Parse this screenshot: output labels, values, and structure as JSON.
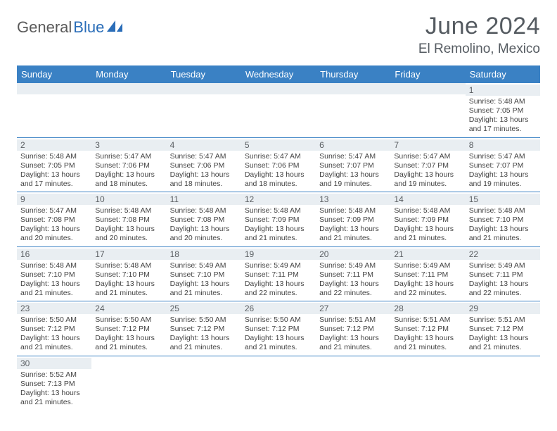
{
  "brand": {
    "text1": "General",
    "text2": "Blue"
  },
  "title": "June 2024",
  "location": "El Remolino, Mexico",
  "colors": {
    "header_bg": "#3a81c4",
    "header_text": "#ffffff",
    "daynum_bg": "#e9eef2",
    "cell_border": "#3a81c4",
    "body_text": "#444444",
    "title_text": "#555b61",
    "brand_gray": "#5a5a5a",
    "brand_blue": "#2a6db8"
  },
  "day_headers": [
    "Sunday",
    "Monday",
    "Tuesday",
    "Wednesday",
    "Thursday",
    "Friday",
    "Saturday"
  ],
  "weeks": [
    [
      null,
      null,
      null,
      null,
      null,
      null,
      {
        "n": "1",
        "sr": "5:48 AM",
        "ss": "7:05 PM",
        "dl": "13 hours",
        "dm": "17 minutes."
      }
    ],
    [
      {
        "n": "2",
        "sr": "5:48 AM",
        "ss": "7:05 PM",
        "dl": "13 hours",
        "dm": "17 minutes."
      },
      {
        "n": "3",
        "sr": "5:47 AM",
        "ss": "7:06 PM",
        "dl": "13 hours",
        "dm": "18 minutes."
      },
      {
        "n": "4",
        "sr": "5:47 AM",
        "ss": "7:06 PM",
        "dl": "13 hours",
        "dm": "18 minutes."
      },
      {
        "n": "5",
        "sr": "5:47 AM",
        "ss": "7:06 PM",
        "dl": "13 hours",
        "dm": "18 minutes."
      },
      {
        "n": "6",
        "sr": "5:47 AM",
        "ss": "7:07 PM",
        "dl": "13 hours",
        "dm": "19 minutes."
      },
      {
        "n": "7",
        "sr": "5:47 AM",
        "ss": "7:07 PM",
        "dl": "13 hours",
        "dm": "19 minutes."
      },
      {
        "n": "8",
        "sr": "5:47 AM",
        "ss": "7:07 PM",
        "dl": "13 hours",
        "dm": "19 minutes."
      }
    ],
    [
      {
        "n": "9",
        "sr": "5:47 AM",
        "ss": "7:08 PM",
        "dl": "13 hours",
        "dm": "20 minutes."
      },
      {
        "n": "10",
        "sr": "5:48 AM",
        "ss": "7:08 PM",
        "dl": "13 hours",
        "dm": "20 minutes."
      },
      {
        "n": "11",
        "sr": "5:48 AM",
        "ss": "7:08 PM",
        "dl": "13 hours",
        "dm": "20 minutes."
      },
      {
        "n": "12",
        "sr": "5:48 AM",
        "ss": "7:09 PM",
        "dl": "13 hours",
        "dm": "21 minutes."
      },
      {
        "n": "13",
        "sr": "5:48 AM",
        "ss": "7:09 PM",
        "dl": "13 hours",
        "dm": "21 minutes."
      },
      {
        "n": "14",
        "sr": "5:48 AM",
        "ss": "7:09 PM",
        "dl": "13 hours",
        "dm": "21 minutes."
      },
      {
        "n": "15",
        "sr": "5:48 AM",
        "ss": "7:10 PM",
        "dl": "13 hours",
        "dm": "21 minutes."
      }
    ],
    [
      {
        "n": "16",
        "sr": "5:48 AM",
        "ss": "7:10 PM",
        "dl": "13 hours",
        "dm": "21 minutes."
      },
      {
        "n": "17",
        "sr": "5:48 AM",
        "ss": "7:10 PM",
        "dl": "13 hours",
        "dm": "21 minutes."
      },
      {
        "n": "18",
        "sr": "5:49 AM",
        "ss": "7:10 PM",
        "dl": "13 hours",
        "dm": "21 minutes."
      },
      {
        "n": "19",
        "sr": "5:49 AM",
        "ss": "7:11 PM",
        "dl": "13 hours",
        "dm": "22 minutes."
      },
      {
        "n": "20",
        "sr": "5:49 AM",
        "ss": "7:11 PM",
        "dl": "13 hours",
        "dm": "22 minutes."
      },
      {
        "n": "21",
        "sr": "5:49 AM",
        "ss": "7:11 PM",
        "dl": "13 hours",
        "dm": "22 minutes."
      },
      {
        "n": "22",
        "sr": "5:49 AM",
        "ss": "7:11 PM",
        "dl": "13 hours",
        "dm": "22 minutes."
      }
    ],
    [
      {
        "n": "23",
        "sr": "5:50 AM",
        "ss": "7:12 PM",
        "dl": "13 hours",
        "dm": "21 minutes."
      },
      {
        "n": "24",
        "sr": "5:50 AM",
        "ss": "7:12 PM",
        "dl": "13 hours",
        "dm": "21 minutes."
      },
      {
        "n": "25",
        "sr": "5:50 AM",
        "ss": "7:12 PM",
        "dl": "13 hours",
        "dm": "21 minutes."
      },
      {
        "n": "26",
        "sr": "5:50 AM",
        "ss": "7:12 PM",
        "dl": "13 hours",
        "dm": "21 minutes."
      },
      {
        "n": "27",
        "sr": "5:51 AM",
        "ss": "7:12 PM",
        "dl": "13 hours",
        "dm": "21 minutes."
      },
      {
        "n": "28",
        "sr": "5:51 AM",
        "ss": "7:12 PM",
        "dl": "13 hours",
        "dm": "21 minutes."
      },
      {
        "n": "29",
        "sr": "5:51 AM",
        "ss": "7:12 PM",
        "dl": "13 hours",
        "dm": "21 minutes."
      }
    ],
    [
      {
        "n": "30",
        "sr": "5:52 AM",
        "ss": "7:13 PM",
        "dl": "13 hours",
        "dm": "21 minutes."
      },
      null,
      null,
      null,
      null,
      null,
      null
    ]
  ],
  "labels": {
    "sunrise": "Sunrise:",
    "sunset": "Sunset:",
    "daylight": "Daylight:",
    "and": "and"
  }
}
